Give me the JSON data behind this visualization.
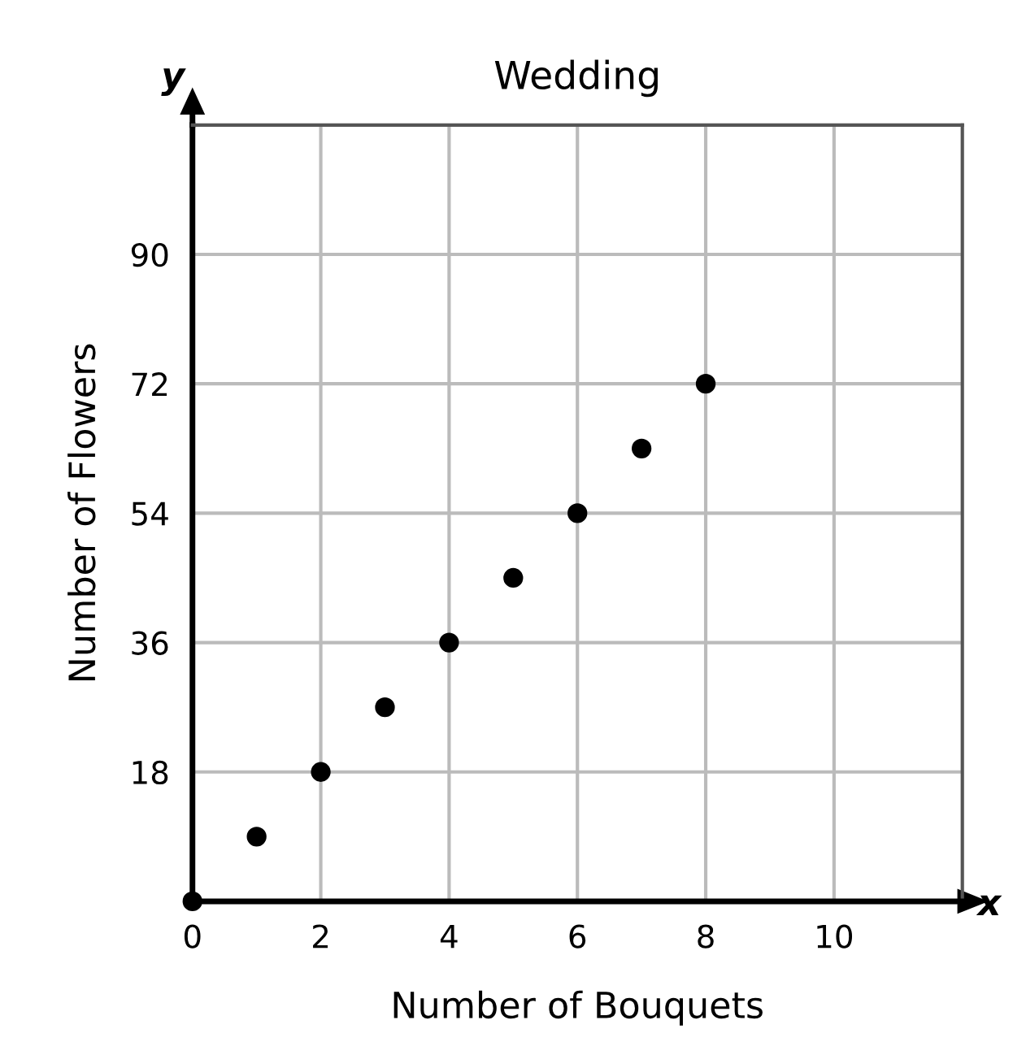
{
  "chart_data": {
    "type": "scatter",
    "title": "Wedding",
    "xlabel": "Number of Bouquets",
    "ylabel": "Number of Flowers",
    "x": [
      0,
      1,
      2,
      3,
      4,
      5,
      6,
      7,
      8
    ],
    "series": [
      {
        "color": "#000000",
        "values": [
          0,
          9,
          18,
          27,
          36,
          45,
          54,
          63,
          72
        ]
      }
    ],
    "xlim": [
      0,
      12
    ],
    "ylim": [
      0,
      108
    ],
    "xticks": [
      0,
      2,
      4,
      6,
      8,
      10
    ],
    "yticks": [
      18,
      36,
      54,
      72,
      90
    ],
    "grid": true,
    "marker": "circle",
    "legend": false,
    "annotations": [
      "y",
      "x"
    ]
  }
}
